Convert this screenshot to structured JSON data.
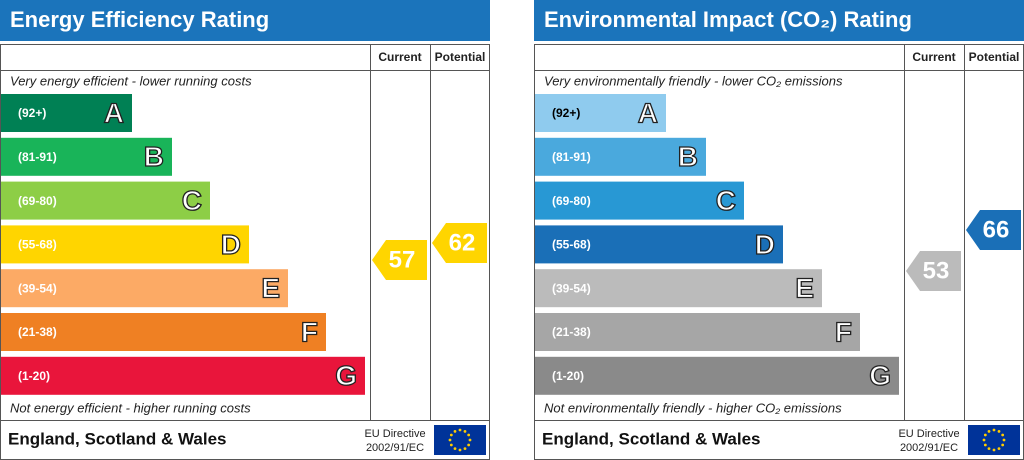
{
  "panels": [
    {
      "title": "Energy Efficiency Rating",
      "headers": [
        "Current",
        "Potential"
      ],
      "top_note": "Very energy efficient - lower running costs",
      "bands": [
        {
          "range": "(92+)",
          "letter": "A"
        },
        {
          "range": "(81-91)",
          "letter": "B"
        },
        {
          "range": "(69-80)",
          "letter": "C"
        },
        {
          "range": "(55-68)",
          "letter": "D"
        },
        {
          "range": "(39-54)",
          "letter": "E"
        },
        {
          "range": "(21-38)",
          "letter": "F"
        },
        {
          "range": "(1-20)",
          "letter": "G"
        }
      ],
      "bottom_note": "Not energy efficient - higher running costs",
      "current": 57,
      "potential": 62,
      "footer": {
        "region": "England, Scotland & Wales",
        "directive": [
          "EU Directive",
          "2002/91/EC"
        ]
      }
    },
    {
      "title": "Environmental Impact (CO₂) Rating",
      "headers": [
        "Current",
        "Potential"
      ],
      "top_note": "Very environmentally friendly - lower CO₂ emissions",
      "bands": [
        {
          "range": "(92+)",
          "letter": "A"
        },
        {
          "range": "(81-91)",
          "letter": "B"
        },
        {
          "range": "(69-80)",
          "letter": "C"
        },
        {
          "range": "(55-68)",
          "letter": "D"
        },
        {
          "range": "(39-54)",
          "letter": "E"
        },
        {
          "range": "(21-38)",
          "letter": "F"
        },
        {
          "range": "(1-20)",
          "letter": "G"
        }
      ],
      "bottom_note": "Not environmentally friendly - higher CO₂ emissions",
      "current": 53,
      "potential": 66,
      "footer": {
        "region": "England, Scotland & Wales",
        "directive": [
          "EU Directive",
          "2002/91/EC"
        ]
      }
    }
  ]
}
